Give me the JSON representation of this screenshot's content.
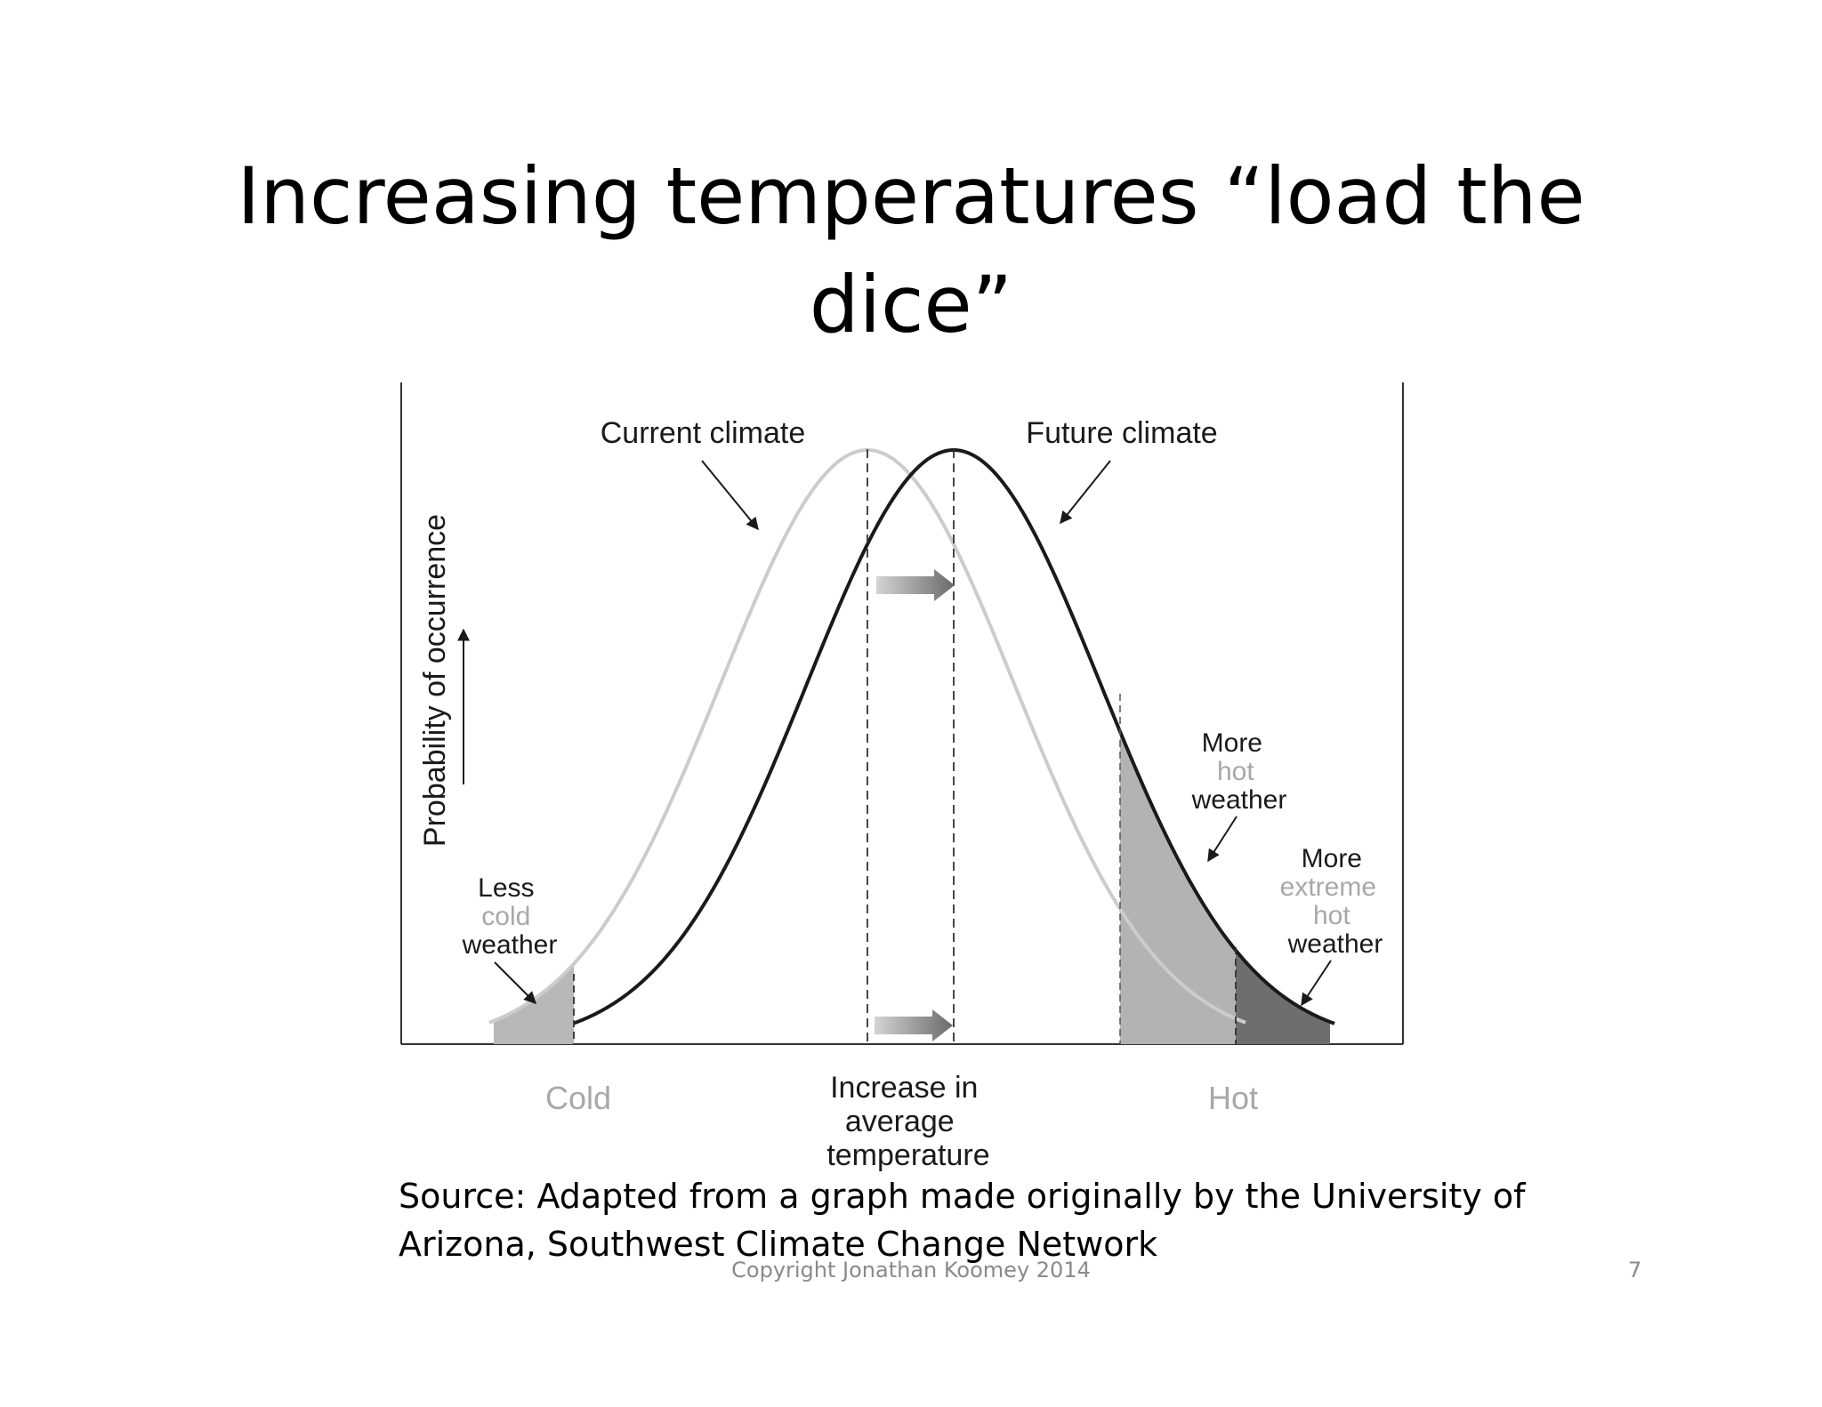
{
  "slide": {
    "title_line1": "Increasing temperatures “load the",
    "title_line2": "dice”",
    "source_line1": "Source:  Adapted from a graph made originally by the University of",
    "source_line2": "Arizona, Southwest Climate Change Network",
    "copyright": "Copyright Jonathan Koomey 2014",
    "page_number": "7"
  },
  "diagram": {
    "y_axis_label": "Probability of occurrence",
    "current_climate_label": "Current climate",
    "future_climate_label": "Future climate",
    "less_cold": {
      "line1": "Less",
      "line2": "cold",
      "line3": "weather"
    },
    "more_hot": {
      "line1": "More",
      "line2": "hot",
      "line3": "weather"
    },
    "more_extreme": {
      "line1": "More",
      "line2": "extreme",
      "line3": "hot",
      "line4": "weather"
    },
    "x_cold_label": "Cold",
    "x_hot_label": "Hot",
    "x_center": {
      "line1": "Increase in",
      "line2": "average",
      "line3": "temperature"
    },
    "colors": {
      "current_curve": "#cccccc",
      "future_curve": "#1a1a1a",
      "hot_area": "#b3b3b3",
      "extreme_area": "#6e6e6e",
      "cold_area": "#b8b8b8",
      "emphasis_gray": "#a8a8a8",
      "shift_arrow": "#888888"
    }
  }
}
